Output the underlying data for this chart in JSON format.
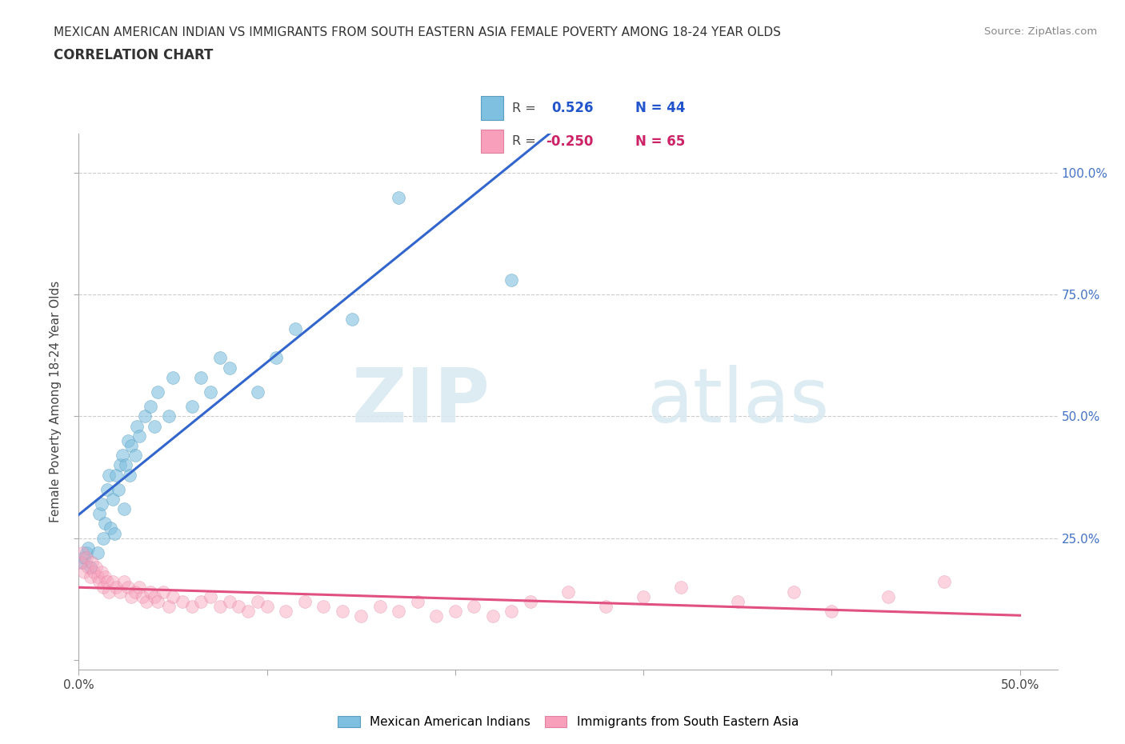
{
  "title_line1": "MEXICAN AMERICAN INDIAN VS IMMIGRANTS FROM SOUTH EASTERN ASIA FEMALE POVERTY AMONG 18-24 YEAR OLDS",
  "title_line2": "CORRELATION CHART",
  "source_text": "Source: ZipAtlas.com",
  "ylabel": "Female Poverty Among 18-24 Year Olds",
  "xlim": [
    0.0,
    0.52
  ],
  "ylim": [
    -0.02,
    1.08
  ],
  "x_ticks": [
    0.0,
    0.1,
    0.2,
    0.3,
    0.4,
    0.5
  ],
  "x_tick_labels": [
    "0.0%",
    "",
    "",
    "",
    "",
    "50.0%"
  ],
  "y_ticks": [
    0.0,
    0.25,
    0.5,
    0.75,
    1.0
  ],
  "y_tick_labels_right": [
    "",
    "25.0%",
    "50.0%",
    "75.0%",
    "100.0%"
  ],
  "blue_R": 0.526,
  "blue_N": 44,
  "pink_R": -0.25,
  "pink_N": 65,
  "blue_color": "#7fbfdf",
  "pink_color": "#f8a0bb",
  "blue_edge_color": "#5a9fc0",
  "pink_edge_color": "#e080a0",
  "blue_line_color": "#3366cc",
  "pink_line_color": "#e05080",
  "watermark_zip": "ZIP",
  "watermark_atlas": "atlas",
  "legend_label_blue": "Mexican American Indians",
  "legend_label_pink": "Immigrants from South Eastern Asia",
  "blue_x": [
    0.002,
    0.003,
    0.004,
    0.005,
    0.006,
    0.01,
    0.011,
    0.012,
    0.013,
    0.014,
    0.015,
    0.016,
    0.017,
    0.018,
    0.019,
    0.02,
    0.021,
    0.022,
    0.023,
    0.024,
    0.025,
    0.026,
    0.027,
    0.028,
    0.03,
    0.031,
    0.032,
    0.035,
    0.038,
    0.04,
    0.042,
    0.048,
    0.05,
    0.06,
    0.065,
    0.07,
    0.075,
    0.08,
    0.095,
    0.105,
    0.115,
    0.145,
    0.17,
    0.23
  ],
  "blue_y": [
    0.2,
    0.21,
    0.22,
    0.23,
    0.19,
    0.22,
    0.3,
    0.32,
    0.25,
    0.28,
    0.35,
    0.38,
    0.27,
    0.33,
    0.26,
    0.38,
    0.35,
    0.4,
    0.42,
    0.31,
    0.4,
    0.45,
    0.38,
    0.44,
    0.42,
    0.48,
    0.46,
    0.5,
    0.52,
    0.48,
    0.55,
    0.5,
    0.58,
    0.52,
    0.58,
    0.55,
    0.62,
    0.6,
    0.55,
    0.62,
    0.68,
    0.7,
    0.95,
    0.78
  ],
  "pink_x": [
    0.001,
    0.002,
    0.003,
    0.004,
    0.005,
    0.006,
    0.007,
    0.008,
    0.009,
    0.01,
    0.011,
    0.012,
    0.013,
    0.014,
    0.015,
    0.016,
    0.018,
    0.02,
    0.022,
    0.024,
    0.026,
    0.028,
    0.03,
    0.032,
    0.034,
    0.036,
    0.038,
    0.04,
    0.042,
    0.045,
    0.048,
    0.05,
    0.055,
    0.06,
    0.065,
    0.07,
    0.075,
    0.08,
    0.085,
    0.09,
    0.095,
    0.1,
    0.11,
    0.12,
    0.13,
    0.14,
    0.15,
    0.16,
    0.17,
    0.18,
    0.19,
    0.2,
    0.21,
    0.22,
    0.23,
    0.24,
    0.26,
    0.28,
    0.3,
    0.32,
    0.35,
    0.38,
    0.4,
    0.43,
    0.46
  ],
  "pink_y": [
    0.2,
    0.22,
    0.18,
    0.21,
    0.19,
    0.17,
    0.2,
    0.18,
    0.19,
    0.17,
    0.16,
    0.18,
    0.15,
    0.17,
    0.16,
    0.14,
    0.16,
    0.15,
    0.14,
    0.16,
    0.15,
    0.13,
    0.14,
    0.15,
    0.13,
    0.12,
    0.14,
    0.13,
    0.12,
    0.14,
    0.11,
    0.13,
    0.12,
    0.11,
    0.12,
    0.13,
    0.11,
    0.12,
    0.11,
    0.1,
    0.12,
    0.11,
    0.1,
    0.12,
    0.11,
    0.1,
    0.09,
    0.11,
    0.1,
    0.12,
    0.09,
    0.1,
    0.11,
    0.09,
    0.1,
    0.12,
    0.14,
    0.11,
    0.13,
    0.15,
    0.12,
    0.14,
    0.1,
    0.13,
    0.16
  ]
}
